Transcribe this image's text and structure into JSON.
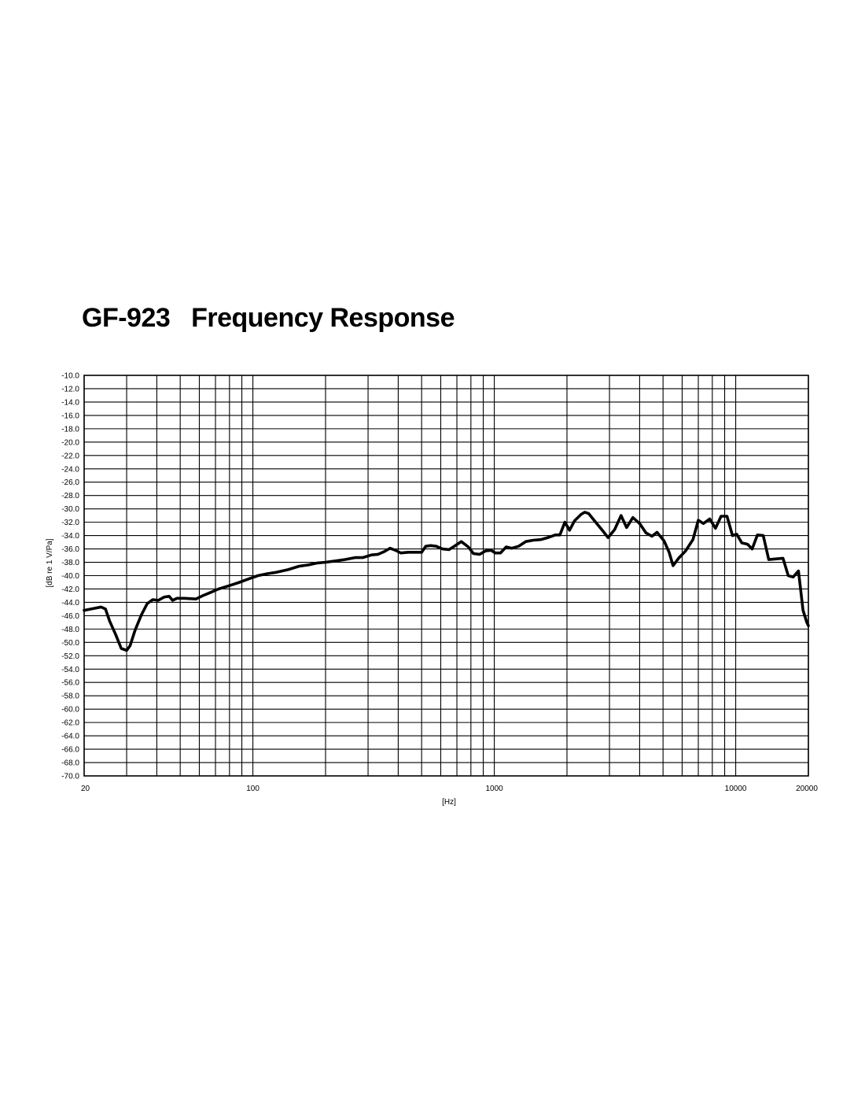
{
  "title": "GF-923   Frequency Response",
  "chart_data": {
    "type": "line",
    "title": "GF-923   Frequency Response",
    "xlabel": "[Hz]",
    "ylabel": "[dB re 1 V/Pa]",
    "xscale": "log",
    "xlim": [
      20,
      20000
    ],
    "ylim": [
      -70,
      -10
    ],
    "grid": true,
    "x_major_ticks": [
      20,
      100,
      1000,
      10000,
      20000
    ],
    "x_tick_labels": [
      "20",
      "100",
      "1000",
      "10000",
      "20000"
    ],
    "x_gridlines": [
      20,
      30,
      40,
      50,
      60,
      70,
      80,
      90,
      100,
      200,
      300,
      400,
      500,
      600,
      700,
      800,
      900,
      1000,
      2000,
      3000,
      4000,
      5000,
      6000,
      7000,
      8000,
      9000,
      10000,
      20000
    ],
    "y_ticks": [
      -10,
      -12,
      -14,
      -16,
      -18,
      -20,
      -22,
      -24,
      -26,
      -28,
      -30,
      -32,
      -34,
      -36,
      -38,
      -40,
      -42,
      -44,
      -46,
      -48,
      -50,
      -52,
      -54,
      -56,
      -58,
      -60,
      -62,
      -64,
      -66,
      -68,
      -70
    ],
    "y_tick_labels": [
      "-10.0",
      "-12.0",
      "-14.0",
      "-16.0",
      "-18.0",
      "-20.0",
      "-22.0",
      "-24.0",
      "-26.0",
      "-28.0",
      "-30.0",
      "-32.0",
      "-34.0",
      "-36.0",
      "-38.0",
      "-40.0",
      "-42.0",
      "-44.0",
      "-46.0",
      "-48.0",
      "-50.0",
      "-52.0",
      "-54.0",
      "-56.0",
      "-58.0",
      "-60.0",
      "-62.0",
      "-64.0",
      "-66.0",
      "-68.0",
      "-70.0"
    ],
    "series": [
      {
        "color": "#000000",
        "points": [
          [
            20,
            -45.2
          ],
          [
            22,
            -44.9
          ],
          [
            23.5,
            -44.7
          ],
          [
            24.5,
            -45.0
          ],
          [
            25.5,
            -46.8
          ],
          [
            27,
            -48.8
          ],
          [
            28.5,
            -50.9
          ],
          [
            30,
            -51.2
          ],
          [
            31,
            -50.5
          ],
          [
            32.5,
            -48.2
          ],
          [
            34.5,
            -45.9
          ],
          [
            36.5,
            -44.2
          ],
          [
            38.5,
            -43.6
          ],
          [
            40.5,
            -43.7
          ],
          [
            43,
            -43.2
          ],
          [
            45,
            -43.1
          ],
          [
            46.5,
            -43.7
          ],
          [
            48.5,
            -43.4
          ],
          [
            52,
            -43.4
          ],
          [
            58,
            -43.5
          ],
          [
            62,
            -43.0
          ],
          [
            67,
            -42.5
          ],
          [
            72,
            -42.0
          ],
          [
            80,
            -41.5
          ],
          [
            88,
            -41.0
          ],
          [
            96,
            -40.5
          ],
          [
            105,
            -40.0
          ],
          [
            115,
            -39.7
          ],
          [
            125,
            -39.5
          ],
          [
            140,
            -39.1
          ],
          [
            155,
            -38.6
          ],
          [
            170,
            -38.4
          ],
          [
            185,
            -38.1
          ],
          [
            200,
            -38.0
          ],
          [
            220,
            -37.8
          ],
          [
            240,
            -37.6
          ],
          [
            265,
            -37.3
          ],
          [
            285,
            -37.3
          ],
          [
            310,
            -36.9
          ],
          [
            330,
            -36.8
          ],
          [
            350,
            -36.4
          ],
          [
            370,
            -35.9
          ],
          [
            390,
            -36.2
          ],
          [
            410,
            -36.6
          ],
          [
            440,
            -36.5
          ],
          [
            470,
            -36.5
          ],
          [
            500,
            -36.5
          ],
          [
            520,
            -35.6
          ],
          [
            545,
            -35.5
          ],
          [
            575,
            -35.6
          ],
          [
            610,
            -36.0
          ],
          [
            650,
            -36.1
          ],
          [
            690,
            -35.5
          ],
          [
            730,
            -34.9
          ],
          [
            780,
            -35.7
          ],
          [
            820,
            -36.7
          ],
          [
            870,
            -36.8
          ],
          [
            920,
            -36.3
          ],
          [
            970,
            -36.2
          ],
          [
            1010,
            -36.6
          ],
          [
            1060,
            -36.6
          ],
          [
            1120,
            -35.7
          ],
          [
            1180,
            -35.9
          ],
          [
            1260,
            -35.6
          ],
          [
            1350,
            -34.9
          ],
          [
            1450,
            -34.7
          ],
          [
            1560,
            -34.6
          ],
          [
            1670,
            -34.3
          ],
          [
            1790,
            -33.9
          ],
          [
            1870,
            -33.9
          ],
          [
            1960,
            -32.0
          ],
          [
            2050,
            -33.2
          ],
          [
            2150,
            -31.8
          ],
          [
            2290,
            -30.8
          ],
          [
            2370,
            -30.5
          ],
          [
            2460,
            -30.7
          ],
          [
            2630,
            -32.0
          ],
          [
            2800,
            -33.2
          ],
          [
            2960,
            -34.3
          ],
          [
            3150,
            -33.1
          ],
          [
            3350,
            -31.0
          ],
          [
            3530,
            -32.8
          ],
          [
            3750,
            -31.3
          ],
          [
            4000,
            -32.2
          ],
          [
            4250,
            -33.6
          ],
          [
            4500,
            -34.1
          ],
          [
            4720,
            -33.5
          ],
          [
            5050,
            -34.8
          ],
          [
            5300,
            -36.5
          ],
          [
            5500,
            -38.5
          ],
          [
            5800,
            -37.4
          ],
          [
            6200,
            -36.3
          ],
          [
            6650,
            -34.6
          ],
          [
            7000,
            -31.7
          ],
          [
            7350,
            -32.2
          ],
          [
            7800,
            -31.5
          ],
          [
            8250,
            -32.9
          ],
          [
            8700,
            -31.1
          ],
          [
            9200,
            -31.1
          ],
          [
            9700,
            -34.0
          ],
          [
            10100,
            -33.8
          ],
          [
            10600,
            -35.1
          ],
          [
            11200,
            -35.3
          ],
          [
            11700,
            -36.0
          ],
          [
            12300,
            -33.9
          ],
          [
            13000,
            -34.0
          ],
          [
            13700,
            -37.6
          ],
          [
            14600,
            -37.5
          ],
          [
            15700,
            -37.4
          ],
          [
            16500,
            -40.0
          ],
          [
            17300,
            -40.2
          ],
          [
            18200,
            -39.3
          ],
          [
            19000,
            -45.2
          ],
          [
            19700,
            -47.0
          ],
          [
            20000,
            -47.5
          ]
        ]
      }
    ]
  }
}
